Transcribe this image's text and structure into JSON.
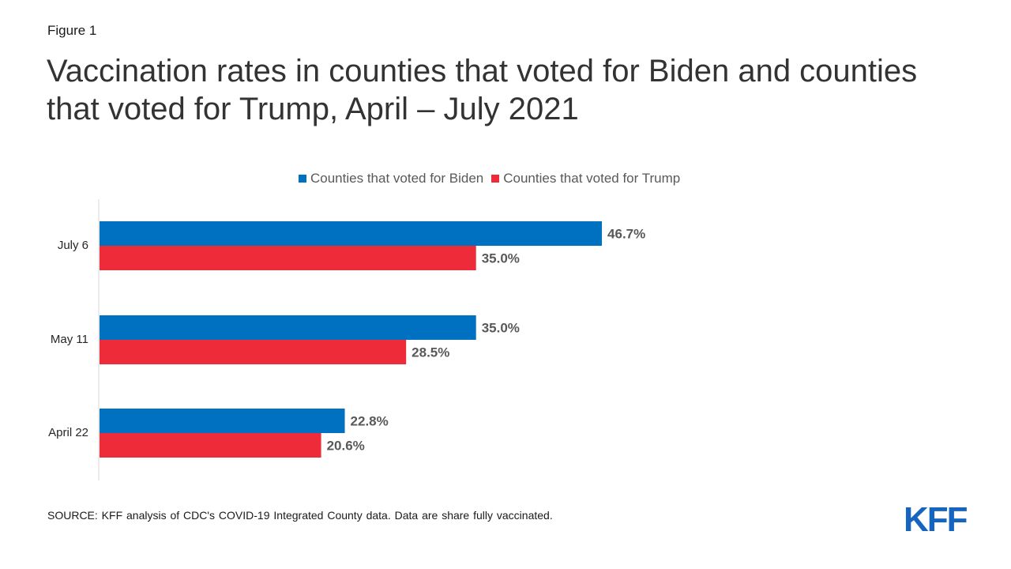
{
  "figure_label": "Figure 1",
  "title": "Vaccination rates in counties that voted for Biden and counties that voted for Trump, April – July 2021",
  "source": "SOURCE:  KFF analysis of CDC's COVID-19 Integrated County data. Data are share fully vaccinated.",
  "logo_text": "KFF",
  "colors": {
    "biden": "#0070c0",
    "trump": "#ee2c39",
    "label": "#595959",
    "axis": "#d9d9d9",
    "logo": "#1565c0"
  },
  "chart_data": {
    "type": "bar",
    "orientation": "horizontal",
    "categories": [
      "July 6",
      "May 11",
      "April 22"
    ],
    "series": [
      {
        "name": "Counties that voted for Biden",
        "values": [
          46.7,
          35.0,
          22.8
        ],
        "labels": [
          "46.7%",
          "35.0%",
          "22.8%"
        ]
      },
      {
        "name": "Counties that voted for Trump",
        "values": [
          35.0,
          28.5,
          20.6
        ],
        "labels": [
          "35.0%",
          "28.5%",
          "20.6%"
        ]
      }
    ],
    "title": "Vaccination rates in counties that voted for Biden and counties that voted for Trump, April – July 2021",
    "xlabel": "",
    "ylabel": "",
    "xlim": [
      0,
      50
    ],
    "legend": "top-center",
    "grid": false
  }
}
